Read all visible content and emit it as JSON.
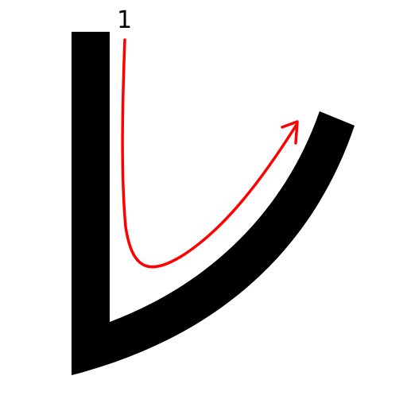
{
  "character": {
    "glyph": "レ",
    "stroke_count": 1
  },
  "stroke_order": {
    "strokes": [
      {
        "number": "1"
      }
    ]
  },
  "colors": {
    "glyph_fill": "#000000",
    "guide_arrow": "#ff0000",
    "background": "#ffffff",
    "number_text": "#000000"
  },
  "icons": {
    "arrow": "stroke-direction-arrow"
  }
}
